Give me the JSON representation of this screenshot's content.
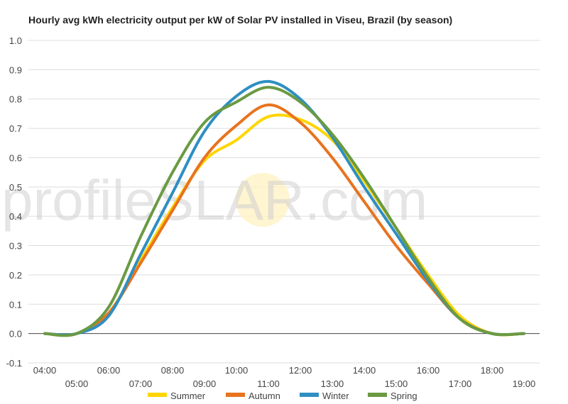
{
  "watermark": {
    "part1": "profile",
    "part2": "S",
    "part3": "LAR.com"
  },
  "chart_data": {
    "type": "line",
    "title": "Hourly avg kWh electricity output per kW of Solar PV installed in Viseu, Brazil (by season)",
    "xlabel": "",
    "ylabel": "",
    "x": [
      "04:00",
      "05:00",
      "06:00",
      "07:00",
      "08:00",
      "09:00",
      "10:00",
      "11:00",
      "12:00",
      "13:00",
      "14:00",
      "15:00",
      "16:00",
      "17:00",
      "18:00",
      "19:00"
    ],
    "ylim": [
      -0.1,
      1.0
    ],
    "yticks": [
      "-0.1",
      "0.0",
      "0.1",
      "0.2",
      "0.3",
      "0.4",
      "0.5",
      "0.6",
      "0.7",
      "0.8",
      "0.9",
      "1.0"
    ],
    "grid": true,
    "legend_position": "bottom",
    "series": [
      {
        "name": "Summer",
        "color": "#ffd500",
        "values": [
          0.0,
          0.0,
          0.07,
          0.25,
          0.43,
          0.59,
          0.66,
          0.74,
          0.73,
          0.66,
          0.52,
          0.36,
          0.2,
          0.06,
          0.0,
          0.0
        ]
      },
      {
        "name": "Autumn",
        "color": "#e8731f",
        "values": [
          0.0,
          0.0,
          0.07,
          0.24,
          0.42,
          0.6,
          0.71,
          0.78,
          0.72,
          0.6,
          0.45,
          0.3,
          0.17,
          0.05,
          0.0,
          0.0
        ]
      },
      {
        "name": "Winter",
        "color": "#2e8fc2",
        "values": [
          0.0,
          0.0,
          0.06,
          0.27,
          0.48,
          0.69,
          0.81,
          0.86,
          0.8,
          0.67,
          0.5,
          0.34,
          0.18,
          0.05,
          0.0,
          0.0
        ]
      },
      {
        "name": "Spring",
        "color": "#6a9a43",
        "values": [
          0.0,
          0.0,
          0.09,
          0.33,
          0.55,
          0.72,
          0.79,
          0.84,
          0.79,
          0.68,
          0.53,
          0.36,
          0.19,
          0.05,
          0.0,
          0.0
        ]
      }
    ]
  }
}
